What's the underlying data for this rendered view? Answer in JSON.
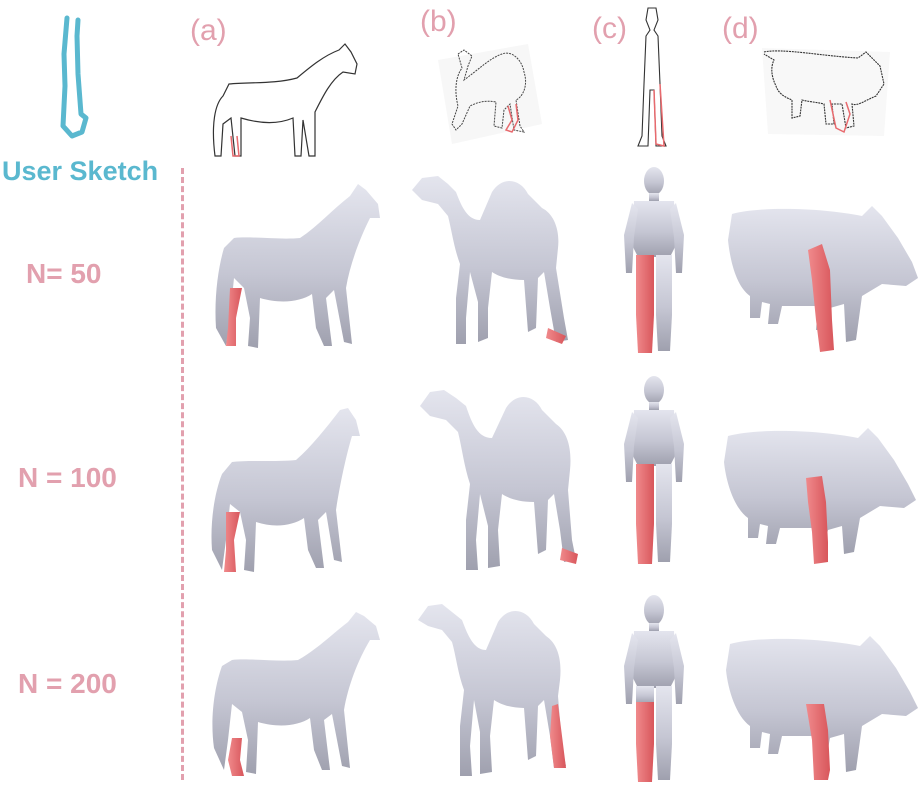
{
  "header": {
    "user_sketch_label": "User Sketch",
    "columns": [
      "(a)",
      "(b)",
      "(c)",
      "(d)"
    ]
  },
  "rows": [
    {
      "label": "N= 50"
    },
    {
      "label": "N = 100"
    },
    {
      "label": "N = 200"
    }
  ],
  "models": [
    "horse",
    "camel",
    "human",
    "pig"
  ],
  "colors": {
    "label_pink": "#e2a0ae",
    "sketch_blue": "#5ab8cf",
    "mesh_gray": "#c9cad6",
    "highlight_red": "#e86a6e"
  }
}
